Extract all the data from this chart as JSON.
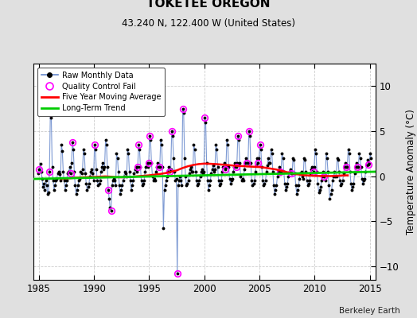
{
  "title": "TOKETEE OREGON",
  "subtitle": "43.240 N, 122.400 W (United States)",
  "ylabel": "Temperature Anomaly (°C)",
  "credit": "Berkeley Earth",
  "xlim": [
    1984.5,
    2015.5
  ],
  "ylim": [
    -11.5,
    12.5
  ],
  "yticks": [
    -10,
    -5,
    0,
    5,
    10
  ],
  "xticks": [
    1985,
    1990,
    1995,
    2000,
    2005,
    2010,
    2015
  ],
  "fig_bg": "#e0e0e0",
  "plot_bg": "#ffffff",
  "grid_color": "#c0c0c0",
  "raw_line_color": "#6688cc",
  "raw_dot_color": "#000000",
  "ma_color": "#ff0000",
  "trend_color": "#00cc00",
  "qc_color": "#ff00ff",
  "raw_data": [
    [
      1984.958,
      0.3
    ],
    [
      1985.042,
      0.8
    ],
    [
      1985.125,
      1.4
    ],
    [
      1985.208,
      0.5
    ],
    [
      1985.292,
      -0.3
    ],
    [
      1985.375,
      -1.2
    ],
    [
      1985.458,
      -0.8
    ],
    [
      1985.542,
      -1.5
    ],
    [
      1985.625,
      -0.5
    ],
    [
      1985.708,
      -1.0
    ],
    [
      1985.792,
      -2.0
    ],
    [
      1985.875,
      -1.8
    ],
    [
      1985.958,
      0.5
    ],
    [
      1986.042,
      7.0
    ],
    [
      1986.125,
      6.5
    ],
    [
      1986.208,
      1.0
    ],
    [
      1986.292,
      -0.5
    ],
    [
      1986.375,
      -1.5
    ],
    [
      1986.458,
      -1.0
    ],
    [
      1986.542,
      -0.5
    ],
    [
      1986.625,
      -0.3
    ],
    [
      1986.708,
      0.3
    ],
    [
      1986.792,
      0.5
    ],
    [
      1986.875,
      0.2
    ],
    [
      1986.958,
      -0.5
    ],
    [
      1987.042,
      3.5
    ],
    [
      1987.125,
      2.8
    ],
    [
      1987.208,
      0.5
    ],
    [
      1987.292,
      -0.5
    ],
    [
      1987.375,
      -1.5
    ],
    [
      1987.458,
      -1.0
    ],
    [
      1987.542,
      -0.5
    ],
    [
      1987.625,
      0.3
    ],
    [
      1987.708,
      0.5
    ],
    [
      1987.792,
      1.0
    ],
    [
      1987.875,
      0.3
    ],
    [
      1987.958,
      1.5
    ],
    [
      1988.042,
      3.8
    ],
    [
      1988.125,
      3.0
    ],
    [
      1988.208,
      0.5
    ],
    [
      1988.292,
      -1.0
    ],
    [
      1988.375,
      -2.0
    ],
    [
      1988.458,
      -1.5
    ],
    [
      1988.542,
      -1.0
    ],
    [
      1988.625,
      -0.5
    ],
    [
      1988.708,
      -0.3
    ],
    [
      1988.792,
      0.5
    ],
    [
      1988.875,
      0.3
    ],
    [
      1988.958,
      0.8
    ],
    [
      1989.042,
      3.0
    ],
    [
      1989.125,
      2.5
    ],
    [
      1989.208,
      0.3
    ],
    [
      1989.292,
      -0.8
    ],
    [
      1989.375,
      -1.5
    ],
    [
      1989.458,
      -1.2
    ],
    [
      1989.542,
      -0.8
    ],
    [
      1989.625,
      0.0
    ],
    [
      1989.708,
      0.5
    ],
    [
      1989.792,
      0.8
    ],
    [
      1989.875,
      0.3
    ],
    [
      1989.958,
      -0.5
    ],
    [
      1990.042,
      3.5
    ],
    [
      1990.125,
      3.0
    ],
    [
      1990.208,
      0.8
    ],
    [
      1990.292,
      -0.5
    ],
    [
      1990.375,
      -1.0
    ],
    [
      1990.458,
      -0.8
    ],
    [
      1990.542,
      -0.5
    ],
    [
      1990.625,
      0.5
    ],
    [
      1990.708,
      1.0
    ],
    [
      1990.792,
      1.5
    ],
    [
      1990.875,
      0.8
    ],
    [
      1990.958,
      1.0
    ],
    [
      1991.042,
      4.0
    ],
    [
      1991.125,
      3.5
    ],
    [
      1991.208,
      1.0
    ],
    [
      1991.292,
      -1.5
    ],
    [
      1991.375,
      -2.5
    ],
    [
      1991.458,
      -3.5
    ],
    [
      1991.542,
      -3.8
    ],
    [
      1991.625,
      -1.0
    ],
    [
      1991.708,
      -0.5
    ],
    [
      1991.792,
      -0.3
    ],
    [
      1991.875,
      -0.5
    ],
    [
      1991.958,
      -1.0
    ],
    [
      1992.042,
      2.5
    ],
    [
      1992.125,
      2.0
    ],
    [
      1992.208,
      0.5
    ],
    [
      1992.292,
      -1.0
    ],
    [
      1992.375,
      -2.0
    ],
    [
      1992.458,
      -1.5
    ],
    [
      1992.542,
      -1.0
    ],
    [
      1992.625,
      -0.5
    ],
    [
      1992.708,
      0.0
    ],
    [
      1992.792,
      0.5
    ],
    [
      1992.875,
      0.3
    ],
    [
      1992.958,
      0.0
    ],
    [
      1993.042,
      3.0
    ],
    [
      1993.125,
      2.5
    ],
    [
      1993.208,
      0.5
    ],
    [
      1993.292,
      -0.5
    ],
    [
      1993.375,
      -1.5
    ],
    [
      1993.458,
      -1.0
    ],
    [
      1993.542,
      -0.5
    ],
    [
      1993.625,
      0.3
    ],
    [
      1993.708,
      0.8
    ],
    [
      1993.792,
      1.0
    ],
    [
      1993.875,
      0.5
    ],
    [
      1993.958,
      1.0
    ],
    [
      1994.042,
      3.5
    ],
    [
      1994.125,
      3.0
    ],
    [
      1994.208,
      1.0
    ],
    [
      1994.292,
      -0.5
    ],
    [
      1994.375,
      -1.0
    ],
    [
      1994.458,
      -0.8
    ],
    [
      1994.542,
      -0.5
    ],
    [
      1994.625,
      0.5
    ],
    [
      1994.708,
      1.0
    ],
    [
      1994.792,
      1.5
    ],
    [
      1994.875,
      1.0
    ],
    [
      1994.958,
      1.5
    ],
    [
      1995.042,
      4.5
    ],
    [
      1995.125,
      4.0
    ],
    [
      1995.208,
      1.5
    ],
    [
      1995.292,
      0.0
    ],
    [
      1995.375,
      -0.5
    ],
    [
      1995.458,
      -0.3
    ],
    [
      1995.542,
      -0.5
    ],
    [
      1995.625,
      0.5
    ],
    [
      1995.708,
      1.0
    ],
    [
      1995.792,
      1.5
    ],
    [
      1995.875,
      1.0
    ],
    [
      1995.958,
      1.0
    ],
    [
      1996.042,
      4.0
    ],
    [
      1996.125,
      3.5
    ],
    [
      1996.208,
      1.0
    ],
    [
      1996.292,
      -5.8
    ],
    [
      1996.375,
      -1.5
    ],
    [
      1996.458,
      -1.0
    ],
    [
      1996.542,
      -0.5
    ],
    [
      1996.625,
      0.0
    ],
    [
      1996.708,
      0.5
    ],
    [
      1996.792,
      1.0
    ],
    [
      1996.875,
      0.5
    ],
    [
      1996.958,
      0.8
    ],
    [
      1997.042,
      5.0
    ],
    [
      1997.125,
      4.5
    ],
    [
      1997.208,
      2.0
    ],
    [
      1997.292,
      0.5
    ],
    [
      1997.375,
      -0.5
    ],
    [
      1997.458,
      -0.3
    ],
    [
      1997.542,
      -10.8
    ],
    [
      1997.625,
      -1.0
    ],
    [
      1997.708,
      -0.5
    ],
    [
      1997.792,
      0.0
    ],
    [
      1997.875,
      -0.5
    ],
    [
      1997.958,
      -1.0
    ],
    [
      1998.042,
      7.5
    ],
    [
      1998.125,
      7.0
    ],
    [
      1998.208,
      2.0
    ],
    [
      1998.292,
      0.0
    ],
    [
      1998.375,
      -1.0
    ],
    [
      1998.458,
      -0.8
    ],
    [
      1998.542,
      -0.5
    ],
    [
      1998.625,
      0.3
    ],
    [
      1998.708,
      0.8
    ],
    [
      1998.792,
      1.0
    ],
    [
      1998.875,
      0.5
    ],
    [
      1998.958,
      0.5
    ],
    [
      1999.042,
      3.5
    ],
    [
      1999.125,
      3.0
    ],
    [
      1999.208,
      0.5
    ],
    [
      1999.292,
      -0.5
    ],
    [
      1999.375,
      -1.0
    ],
    [
      1999.458,
      -0.8
    ],
    [
      1999.542,
      -0.5
    ],
    [
      1999.625,
      0.0
    ],
    [
      1999.708,
      0.5
    ],
    [
      1999.792,
      0.8
    ],
    [
      1999.875,
      0.3
    ],
    [
      1999.958,
      0.5
    ],
    [
      2000.042,
      6.5
    ],
    [
      2000.125,
      6.0
    ],
    [
      2000.208,
      1.5
    ],
    [
      2000.292,
      -0.5
    ],
    [
      2000.375,
      -1.5
    ],
    [
      2000.458,
      -1.0
    ],
    [
      2000.542,
      -0.5
    ],
    [
      2000.625,
      0.3
    ],
    [
      2000.708,
      0.8
    ],
    [
      2000.792,
      1.2
    ],
    [
      2000.875,
      0.5
    ],
    [
      2000.958,
      0.8
    ],
    [
      2001.042,
      3.5
    ],
    [
      2001.125,
      3.0
    ],
    [
      2001.208,
      1.0
    ],
    [
      2001.292,
      -0.5
    ],
    [
      2001.375,
      -1.0
    ],
    [
      2001.458,
      -0.8
    ],
    [
      2001.542,
      -0.5
    ],
    [
      2001.625,
      0.5
    ],
    [
      2001.708,
      1.0
    ],
    [
      2001.792,
      1.5
    ],
    [
      2001.875,
      0.8
    ],
    [
      2001.958,
      1.0
    ],
    [
      2002.042,
      4.0
    ],
    [
      2002.125,
      3.5
    ],
    [
      2002.208,
      1.0
    ],
    [
      2002.292,
      -0.3
    ],
    [
      2002.375,
      -0.8
    ],
    [
      2002.458,
      -0.5
    ],
    [
      2002.542,
      -0.3
    ],
    [
      2002.625,
      0.5
    ],
    [
      2002.708,
      1.0
    ],
    [
      2002.792,
      1.5
    ],
    [
      2002.875,
      1.0
    ],
    [
      2002.958,
      1.5
    ],
    [
      2003.042,
      4.5
    ],
    [
      2003.125,
      4.0
    ],
    [
      2003.208,
      1.5
    ],
    [
      2003.292,
      0.0
    ],
    [
      2003.375,
      -0.5
    ],
    [
      2003.458,
      -0.3
    ],
    [
      2003.542,
      -0.5
    ],
    [
      2003.625,
      0.8
    ],
    [
      2003.708,
      1.5
    ],
    [
      2003.792,
      2.0
    ],
    [
      2003.875,
      1.5
    ],
    [
      2003.958,
      1.5
    ],
    [
      2004.042,
      5.0
    ],
    [
      2004.125,
      4.5
    ],
    [
      2004.208,
      1.5
    ],
    [
      2004.292,
      -0.5
    ],
    [
      2004.375,
      -1.0
    ],
    [
      2004.458,
      -0.8
    ],
    [
      2004.542,
      -0.5
    ],
    [
      2004.625,
      0.5
    ],
    [
      2004.708,
      1.2
    ],
    [
      2004.792,
      2.0
    ],
    [
      2004.875,
      1.5
    ],
    [
      2004.958,
      2.0
    ],
    [
      2005.042,
      3.5
    ],
    [
      2005.125,
      3.0
    ],
    [
      2005.208,
      1.0
    ],
    [
      2005.292,
      -0.5
    ],
    [
      2005.375,
      -1.0
    ],
    [
      2005.458,
      -0.8
    ],
    [
      2005.542,
      -0.5
    ],
    [
      2005.625,
      0.5
    ],
    [
      2005.708,
      1.2
    ],
    [
      2005.792,
      2.0
    ],
    [
      2005.875,
      1.5
    ],
    [
      2005.958,
      1.5
    ],
    [
      2006.042,
      3.0
    ],
    [
      2006.125,
      2.5
    ],
    [
      2006.208,
      0.5
    ],
    [
      2006.292,
      -1.0
    ],
    [
      2006.375,
      -2.0
    ],
    [
      2006.458,
      -1.5
    ],
    [
      2006.542,
      -1.0
    ],
    [
      2006.625,
      0.0
    ],
    [
      2006.708,
      0.5
    ],
    [
      2006.792,
      1.0
    ],
    [
      2006.875,
      0.5
    ],
    [
      2006.958,
      0.5
    ],
    [
      2007.042,
      2.5
    ],
    [
      2007.125,
      2.0
    ],
    [
      2007.208,
      0.5
    ],
    [
      2007.292,
      -0.8
    ],
    [
      2007.375,
      -1.5
    ],
    [
      2007.458,
      -1.2
    ],
    [
      2007.542,
      -0.8
    ],
    [
      2007.625,
      0.0
    ],
    [
      2007.708,
      0.5
    ],
    [
      2007.792,
      0.8
    ],
    [
      2007.875,
      0.3
    ],
    [
      2007.958,
      0.3
    ],
    [
      2008.042,
      2.0
    ],
    [
      2008.125,
      1.8
    ],
    [
      2008.208,
      0.3
    ],
    [
      2008.292,
      -1.0
    ],
    [
      2008.375,
      -2.0
    ],
    [
      2008.458,
      -1.5
    ],
    [
      2008.542,
      -1.0
    ],
    [
      2008.625,
      -0.3
    ],
    [
      2008.708,
      0.3
    ],
    [
      2008.792,
      0.5
    ],
    [
      2008.875,
      0.0
    ],
    [
      2008.958,
      -0.3
    ],
    [
      2009.042,
      2.0
    ],
    [
      2009.125,
      1.8
    ],
    [
      2009.208,
      0.5
    ],
    [
      2009.292,
      -0.5
    ],
    [
      2009.375,
      -1.0
    ],
    [
      2009.458,
      -0.8
    ],
    [
      2009.542,
      -0.5
    ],
    [
      2009.625,
      0.3
    ],
    [
      2009.708,
      0.8
    ],
    [
      2009.792,
      1.0
    ],
    [
      2009.875,
      0.5
    ],
    [
      2009.958,
      1.0
    ],
    [
      2010.042,
      3.0
    ],
    [
      2010.125,
      2.5
    ],
    [
      2010.208,
      0.5
    ],
    [
      2010.292,
      -0.8
    ],
    [
      2010.375,
      -1.8
    ],
    [
      2010.458,
      -1.5
    ],
    [
      2010.542,
      -1.2
    ],
    [
      2010.625,
      -0.5
    ],
    [
      2010.708,
      0.0
    ],
    [
      2010.792,
      0.5
    ],
    [
      2010.875,
      0.0
    ],
    [
      2010.958,
      -0.5
    ],
    [
      2011.042,
      2.5
    ],
    [
      2011.125,
      2.0
    ],
    [
      2011.208,
      0.5
    ],
    [
      2011.292,
      -1.0
    ],
    [
      2011.375,
      -2.5
    ],
    [
      2011.458,
      -2.0
    ],
    [
      2011.542,
      -1.5
    ],
    [
      2011.625,
      -0.5
    ],
    [
      2011.708,
      0.0
    ],
    [
      2011.792,
      0.5
    ],
    [
      2011.875,
      0.0
    ],
    [
      2011.958,
      0.0
    ],
    [
      2012.042,
      2.0
    ],
    [
      2012.125,
      1.8
    ],
    [
      2012.208,
      0.5
    ],
    [
      2012.292,
      -0.5
    ],
    [
      2012.375,
      -1.0
    ],
    [
      2012.458,
      -0.8
    ],
    [
      2012.542,
      -0.5
    ],
    [
      2012.625,
      0.3
    ],
    [
      2012.708,
      1.0
    ],
    [
      2012.792,
      1.5
    ],
    [
      2012.875,
      1.0
    ],
    [
      2012.958,
      1.0
    ],
    [
      2013.042,
      3.0
    ],
    [
      2013.125,
      2.5
    ],
    [
      2013.208,
      0.5
    ],
    [
      2013.292,
      -0.8
    ],
    [
      2013.375,
      -1.5
    ],
    [
      2013.458,
      -1.2
    ],
    [
      2013.542,
      -0.8
    ],
    [
      2013.625,
      0.3
    ],
    [
      2013.708,
      1.0
    ],
    [
      2013.792,
      1.5
    ],
    [
      2013.875,
      1.0
    ],
    [
      2013.958,
      1.0
    ],
    [
      2014.042,
      2.5
    ],
    [
      2014.125,
      2.0
    ],
    [
      2014.208,
      1.0
    ],
    [
      2014.292,
      -0.3
    ],
    [
      2014.375,
      -0.8
    ],
    [
      2014.458,
      -0.5
    ],
    [
      2014.542,
      -0.3
    ],
    [
      2014.625,
      0.5
    ],
    [
      2014.708,
      1.2
    ],
    [
      2014.792,
      1.8
    ],
    [
      2014.875,
      1.3
    ],
    [
      2014.958,
      1.5
    ],
    [
      2015.042,
      2.5
    ],
    [
      2015.125,
      2.0
    ]
  ],
  "qc_fails": [
    [
      1985.042,
      0.8
    ],
    [
      1985.958,
      0.5
    ],
    [
      1986.042,
      7.0
    ],
    [
      1987.875,
      0.3
    ],
    [
      1988.042,
      3.8
    ],
    [
      1990.042,
      3.5
    ],
    [
      1991.292,
      -1.5
    ],
    [
      1991.542,
      -3.8
    ],
    [
      1993.958,
      1.0
    ],
    [
      1994.042,
      3.5
    ],
    [
      1994.958,
      1.5
    ],
    [
      1995.042,
      4.5
    ],
    [
      1995.875,
      1.0
    ],
    [
      1996.875,
      0.5
    ],
    [
      1997.042,
      5.0
    ],
    [
      1997.542,
      -10.8
    ],
    [
      1998.042,
      7.5
    ],
    [
      2000.042,
      6.5
    ],
    [
      2001.875,
      0.8
    ],
    [
      2002.875,
      1.0
    ],
    [
      2003.042,
      4.5
    ],
    [
      2003.875,
      1.5
    ],
    [
      2004.042,
      5.0
    ],
    [
      2004.875,
      1.5
    ],
    [
      2005.042,
      3.5
    ],
    [
      2006.875,
      0.5
    ],
    [
      2007.875,
      0.3
    ],
    [
      2009.875,
      0.5
    ],
    [
      2010.875,
      0.0
    ],
    [
      2012.875,
      1.0
    ],
    [
      2013.875,
      1.0
    ],
    [
      2014.875,
      1.3
    ]
  ],
  "moving_avg": [
    [
      1987.0,
      -0.3
    ],
    [
      1987.5,
      -0.25
    ],
    [
      1988.0,
      -0.2
    ],
    [
      1988.5,
      -0.15
    ],
    [
      1989.0,
      -0.12
    ],
    [
      1989.5,
      -0.1
    ],
    [
      1990.0,
      -0.08
    ],
    [
      1990.5,
      -0.05
    ],
    [
      1991.0,
      -0.02
    ],
    [
      1991.5,
      -0.05
    ],
    [
      1992.0,
      -0.1
    ],
    [
      1992.5,
      -0.12
    ],
    [
      1993.0,
      -0.08
    ],
    [
      1993.5,
      -0.05
    ],
    [
      1994.0,
      0.0
    ],
    [
      1994.5,
      0.05
    ],
    [
      1995.0,
      0.1
    ],
    [
      1995.5,
      0.18
    ],
    [
      1996.0,
      0.25
    ],
    [
      1996.5,
      0.35
    ],
    [
      1997.0,
      0.5
    ],
    [
      1997.5,
      0.65
    ],
    [
      1998.0,
      0.9
    ],
    [
      1998.5,
      1.1
    ],
    [
      1999.0,
      1.25
    ],
    [
      1999.5,
      1.35
    ],
    [
      2000.0,
      1.4
    ],
    [
      2000.5,
      1.38
    ],
    [
      2001.0,
      1.35
    ],
    [
      2001.5,
      1.3
    ],
    [
      2002.0,
      1.25
    ],
    [
      2002.5,
      1.2
    ],
    [
      2003.0,
      1.15
    ],
    [
      2003.5,
      1.12
    ],
    [
      2004.0,
      1.08
    ],
    [
      2004.5,
      1.05
    ],
    [
      2005.0,
      1.02
    ],
    [
      2005.5,
      0.95
    ],
    [
      2006.0,
      0.85
    ],
    [
      2006.5,
      0.75
    ],
    [
      2007.0,
      0.6
    ],
    [
      2007.5,
      0.45
    ],
    [
      2008.0,
      0.3
    ],
    [
      2008.5,
      0.2
    ],
    [
      2009.0,
      0.12
    ],
    [
      2009.5,
      0.08
    ],
    [
      2010.0,
      0.05
    ],
    [
      2010.5,
      0.03
    ],
    [
      2011.0,
      0.02
    ],
    [
      2011.5,
      0.02
    ],
    [
      2012.0,
      0.05
    ],
    [
      2012.5,
      0.08
    ],
    [
      2013.0,
      0.1
    ]
  ],
  "trend_x": [
    1984.5,
    2015.5
  ],
  "trend_y": [
    -0.3,
    0.5
  ]
}
